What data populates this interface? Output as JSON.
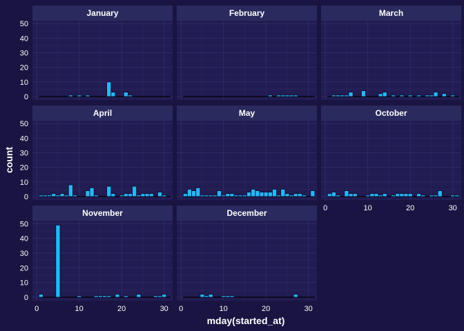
{
  "chart_data": {
    "type": "bar",
    "xlabel": "mday(started_at)",
    "ylabel": "count",
    "x_ticks": [
      0,
      10,
      20,
      30
    ],
    "y_ticks": [
      0,
      10,
      20,
      30,
      40,
      50
    ],
    "xlim": [
      -1,
      32
    ],
    "ylim": [
      0,
      50
    ],
    "grid": true,
    "colors": {
      "background": "#1a1442",
      "panel": "#211c52",
      "strip": "#2a2a5e",
      "bar_fill": "#29b6f6",
      "bar_outline": "#0b0b2a",
      "grid": "#2f2b66"
    },
    "panels": [
      {
        "label": "January",
        "x": [
          8,
          10,
          12,
          17,
          18,
          21,
          22
        ],
        "counts": [
          1,
          1,
          1,
          10,
          3,
          3,
          1
        ]
      },
      {
        "label": "February",
        "x": [
          21,
          23,
          24,
          25,
          26,
          27
        ],
        "counts": [
          1,
          1,
          1,
          1,
          1,
          1
        ]
      },
      {
        "label": "March",
        "x": [
          2,
          3,
          4,
          5,
          6,
          9,
          13,
          14,
          16,
          18,
          20,
          22,
          24,
          25,
          26,
          28,
          30
        ],
        "counts": [
          1,
          1,
          1,
          1,
          3,
          4,
          2,
          3,
          1,
          1,
          1,
          1,
          1,
          1,
          3,
          2,
          1
        ]
      },
      {
        "label": "April",
        "x": [
          1,
          2,
          3,
          4,
          5,
          6,
          7,
          8,
          9,
          12,
          13,
          14,
          17,
          18,
          20,
          21,
          22,
          23,
          24,
          25,
          26,
          27,
          29,
          30
        ],
        "counts": [
          1,
          1,
          1,
          2,
          1,
          2,
          1,
          8,
          1,
          4,
          6,
          1,
          7,
          2,
          1,
          2,
          2,
          7,
          1,
          2,
          2,
          2,
          3,
          1
        ]
      },
      {
        "label": "May",
        "x": [
          1,
          2,
          3,
          4,
          5,
          6,
          7,
          8,
          9,
          10,
          11,
          12,
          13,
          14,
          15,
          16,
          17,
          18,
          19,
          20,
          21,
          22,
          23,
          24,
          25,
          26,
          27,
          28,
          29,
          31
        ],
        "counts": [
          2,
          5,
          4,
          6,
          1,
          1,
          1,
          1,
          4,
          1,
          2,
          2,
          1,
          1,
          1,
          3,
          5,
          4,
          3,
          3,
          3,
          5,
          1,
          5,
          2,
          1,
          2,
          2,
          1,
          4
        ]
      },
      {
        "label": "October",
        "x": [
          1,
          2,
          3,
          5,
          6,
          7,
          10,
          11,
          12,
          13,
          14,
          16,
          17,
          18,
          19,
          20,
          22,
          23,
          25,
          26,
          27,
          30,
          31
        ],
        "counts": [
          2,
          3,
          1,
          4,
          2,
          2,
          1,
          2,
          2,
          1,
          2,
          1,
          2,
          2,
          2,
          2,
          2,
          1,
          1,
          1,
          4,
          1,
          1
        ]
      },
      {
        "label": "November",
        "x": [
          1,
          5,
          10,
          14,
          15,
          16,
          17,
          19,
          21,
          24,
          28,
          29,
          30
        ],
        "counts": [
          2,
          49,
          1,
          1,
          1,
          1,
          1,
          2,
          1,
          2,
          1,
          1,
          2
        ]
      },
      {
        "label": "December",
        "x": [
          5,
          6,
          7,
          10,
          11,
          12,
          27
        ],
        "counts": [
          2,
          1,
          2,
          1,
          1,
          1,
          2
        ]
      }
    ]
  }
}
